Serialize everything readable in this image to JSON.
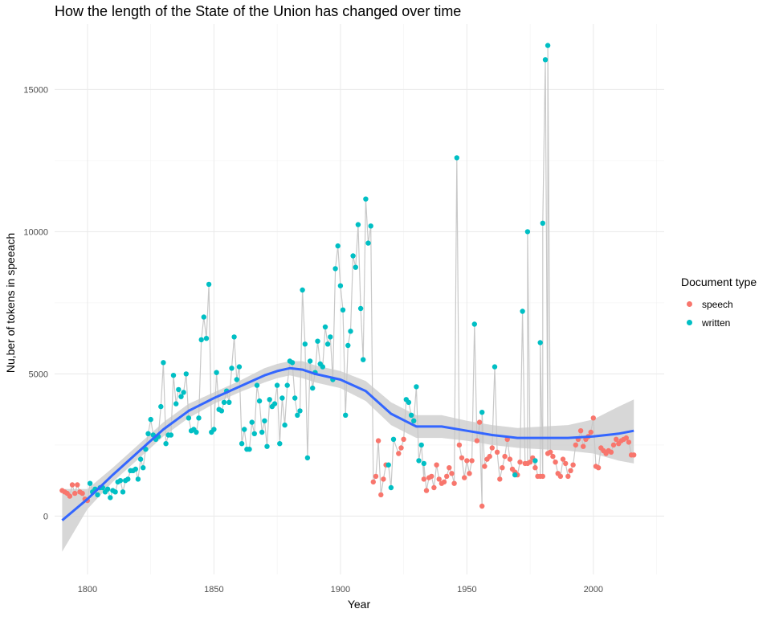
{
  "chart_data": {
    "type": "scatter",
    "title": "How the length of the State of the Union has changed over time",
    "xlabel": "Year",
    "ylabel": "Nu,ber of tokens in speeach",
    "xlim": [
      1787,
      2028
    ],
    "ylim": [
      -2050,
      17300
    ],
    "x_ticks": [
      1800,
      1850,
      1900,
      1950,
      2000
    ],
    "y_ticks": [
      0,
      5000,
      10000,
      15000
    ],
    "x_tick_labels": [
      "1800",
      "1850",
      "1900",
      "1950",
      "2000"
    ],
    "y_tick_labels": [
      "0",
      "5000",
      "10000",
      "15000"
    ],
    "grid": true,
    "legend_position": "right",
    "legend": {
      "title": "Document type",
      "entries": [
        {
          "label": "speech",
          "color": "#F8766D"
        },
        {
          "label": "written",
          "color": "#00BFC4"
        }
      ]
    },
    "colors": {
      "speech": "#F8766D",
      "written": "#00BFC4",
      "smooth": "#3366FF",
      "ribbon": "#d0d0d0",
      "line": "#c8c8c8"
    },
    "series": [
      {
        "name": "speech",
        "points": [
          [
            1790,
            900
          ],
          [
            1791,
            850
          ],
          [
            1792,
            800
          ],
          [
            1793,
            700
          ],
          [
            1794,
            1100
          ],
          [
            1795,
            800
          ],
          [
            1796,
            1100
          ],
          [
            1797,
            850
          ],
          [
            1798,
            800
          ],
          [
            1799,
            600
          ],
          [
            1800,
            550
          ],
          [
            1913,
            1200
          ],
          [
            1914,
            1400
          ],
          [
            1915,
            2650
          ],
          [
            1916,
            750
          ],
          [
            1917,
            1300
          ],
          [
            1918,
            1800
          ],
          [
            1923,
            2200
          ],
          [
            1924,
            2400
          ],
          [
            1925,
            2700
          ],
          [
            1933,
            1300
          ],
          [
            1934,
            900
          ],
          [
            1935,
            1350
          ],
          [
            1936,
            1400
          ],
          [
            1937,
            1000
          ],
          [
            1938,
            1800
          ],
          [
            1939,
            1300
          ],
          [
            1940,
            1150
          ],
          [
            1941,
            1200
          ],
          [
            1942,
            1400
          ],
          [
            1943,
            1700
          ],
          [
            1944,
            1500
          ],
          [
            1945,
            1150
          ],
          [
            1947,
            2500
          ],
          [
            1948,
            2050
          ],
          [
            1949,
            1350
          ],
          [
            1950,
            1950
          ],
          [
            1951,
            1500
          ],
          [
            1952,
            1950
          ],
          [
            1954,
            2650
          ],
          [
            1955,
            3300
          ],
          [
            1956,
            350
          ],
          [
            1957,
            1750
          ],
          [
            1958,
            2000
          ],
          [
            1959,
            2100
          ],
          [
            1960,
            2400
          ],
          [
            1962,
            2250
          ],
          [
            1963,
            1300
          ],
          [
            1964,
            1700
          ],
          [
            1965,
            2100
          ],
          [
            1966,
            2700
          ],
          [
            1967,
            2000
          ],
          [
            1968,
            1650
          ],
          [
            1969,
            1550
          ],
          [
            1970,
            1450
          ],
          [
            1971,
            1900
          ],
          [
            1973,
            1850
          ],
          [
            1974,
            1850
          ],
          [
            1975,
            1900
          ],
          [
            1976,
            2050
          ],
          [
            1977,
            1700
          ],
          [
            1978,
            1400
          ],
          [
            1979,
            1400
          ],
          [
            1980,
            1400
          ],
          [
            1982,
            2200
          ],
          [
            1983,
            2250
          ],
          [
            1984,
            2100
          ],
          [
            1985,
            1900
          ],
          [
            1986,
            1500
          ],
          [
            1987,
            1400
          ],
          [
            1988,
            2000
          ],
          [
            1989,
            1850
          ],
          [
            1990,
            1400
          ],
          [
            1991,
            1600
          ],
          [
            1992,
            1800
          ],
          [
            1993,
            2500
          ],
          [
            1994,
            2700
          ],
          [
            1995,
            3000
          ],
          [
            1996,
            2450
          ],
          [
            1997,
            2700
          ],
          [
            1998,
            2800
          ],
          [
            1999,
            2950
          ],
          [
            2000,
            3450
          ],
          [
            2001,
            1750
          ],
          [
            2002,
            1700
          ],
          [
            2003,
            2400
          ],
          [
            2004,
            2300
          ],
          [
            2005,
            2200
          ],
          [
            2006,
            2300
          ],
          [
            2007,
            2250
          ],
          [
            2008,
            2500
          ],
          [
            2009,
            2700
          ],
          [
            2010,
            2550
          ],
          [
            2011,
            2650
          ],
          [
            2012,
            2700
          ],
          [
            2013,
            2750
          ],
          [
            2014,
            2600
          ],
          [
            2015,
            2150
          ],
          [
            2016,
            2150
          ]
        ]
      },
      {
        "name": "written",
        "points": [
          [
            1801,
            1150
          ],
          [
            1802,
            850
          ],
          [
            1803,
            950
          ],
          [
            1804,
            750
          ],
          [
            1805,
            1000
          ],
          [
            1806,
            1000
          ],
          [
            1807,
            850
          ],
          [
            1808,
            950
          ],
          [
            1809,
            650
          ],
          [
            1810,
            900
          ],
          [
            1811,
            850
          ],
          [
            1812,
            1200
          ],
          [
            1813,
            1250
          ],
          [
            1814,
            850
          ],
          [
            1815,
            1250
          ],
          [
            1816,
            1300
          ],
          [
            1817,
            1600
          ],
          [
            1818,
            1600
          ],
          [
            1819,
            1650
          ],
          [
            1820,
            1300
          ],
          [
            1821,
            2000
          ],
          [
            1822,
            1700
          ],
          [
            1823,
            2350
          ],
          [
            1824,
            2900
          ],
          [
            1825,
            3400
          ],
          [
            1826,
            2850
          ],
          [
            1827,
            2700
          ],
          [
            1828,
            2800
          ],
          [
            1829,
            3850
          ],
          [
            1830,
            5400
          ],
          [
            1831,
            2550
          ],
          [
            1832,
            2850
          ],
          [
            1833,
            2850
          ],
          [
            1834,
            4950
          ],
          [
            1835,
            3950
          ],
          [
            1836,
            4450
          ],
          [
            1837,
            4200
          ],
          [
            1838,
            4350
          ],
          [
            1839,
            5000
          ],
          [
            1840,
            3450
          ],
          [
            1841,
            3000
          ],
          [
            1842,
            3050
          ],
          [
            1843,
            2950
          ],
          [
            1844,
            3450
          ],
          [
            1845,
            6200
          ],
          [
            1846,
            7000
          ],
          [
            1847,
            6250
          ],
          [
            1848,
            8150
          ],
          [
            1849,
            2950
          ],
          [
            1850,
            3050
          ],
          [
            1851,
            5050
          ],
          [
            1852,
            3750
          ],
          [
            1853,
            3700
          ],
          [
            1854,
            4000
          ],
          [
            1855,
            4400
          ],
          [
            1856,
            4000
          ],
          [
            1857,
            5200
          ],
          [
            1858,
            6300
          ],
          [
            1859,
            4800
          ],
          [
            1860,
            5250
          ],
          [
            1861,
            2550
          ],
          [
            1862,
            3050
          ],
          [
            1863,
            2350
          ],
          [
            1864,
            2350
          ],
          [
            1865,
            3300
          ],
          [
            1866,
            2900
          ],
          [
            1867,
            4600
          ],
          [
            1868,
            4050
          ],
          [
            1869,
            2950
          ],
          [
            1870,
            3350
          ],
          [
            1871,
            2450
          ],
          [
            1872,
            4100
          ],
          [
            1873,
            3850
          ],
          [
            1874,
            3950
          ],
          [
            1875,
            4600
          ],
          [
            1876,
            2550
          ],
          [
            1877,
            4150
          ],
          [
            1878,
            3200
          ],
          [
            1879,
            4600
          ],
          [
            1880,
            5450
          ],
          [
            1881,
            5400
          ],
          [
            1882,
            4150
          ],
          [
            1883,
            3550
          ],
          [
            1884,
            3700
          ],
          [
            1885,
            7950
          ],
          [
            1886,
            6050
          ],
          [
            1887,
            2050
          ],
          [
            1888,
            5450
          ],
          [
            1889,
            4500
          ],
          [
            1890,
            5050
          ],
          [
            1891,
            6150
          ],
          [
            1892,
            5350
          ],
          [
            1893,
            5250
          ],
          [
            1894,
            6650
          ],
          [
            1895,
            6050
          ],
          [
            1896,
            6300
          ],
          [
            1897,
            4800
          ],
          [
            1898,
            8700
          ],
          [
            1899,
            9500
          ],
          [
            1900,
            8100
          ],
          [
            1901,
            7250
          ],
          [
            1902,
            3550
          ],
          [
            1903,
            6000
          ],
          [
            1904,
            6500
          ],
          [
            1905,
            9150
          ],
          [
            1906,
            8750
          ],
          [
            1907,
            10250
          ],
          [
            1908,
            7300
          ],
          [
            1909,
            5500
          ],
          [
            1910,
            11150
          ],
          [
            1911,
            9600
          ],
          [
            1912,
            10200
          ],
          [
            1919,
            1800
          ],
          [
            1920,
            1000
          ],
          [
            1921,
            2700
          ],
          [
            1926,
            4100
          ],
          [
            1927,
            4000
          ],
          [
            1928,
            3550
          ],
          [
            1929,
            3350
          ],
          [
            1930,
            4550
          ],
          [
            1931,
            1950
          ],
          [
            1932,
            2500
          ],
          [
            1933,
            1850
          ],
          [
            1946,
            12600
          ],
          [
            1953,
            6750
          ],
          [
            1956,
            3650
          ],
          [
            1961,
            5250
          ],
          [
            1969,
            1450
          ],
          [
            1972,
            7200
          ],
          [
            1974,
            10000
          ],
          [
            1977,
            1950
          ],
          [
            1979,
            6100
          ],
          [
            1980,
            10300
          ],
          [
            1981,
            16050
          ],
          [
            1982,
            16550
          ]
        ]
      }
    ],
    "smooth_fit": {
      "label": "loess",
      "x": [
        1790,
        1800,
        1810,
        1820,
        1830,
        1840,
        1850,
        1860,
        1870,
        1875,
        1880,
        1885,
        1890,
        1900,
        1910,
        1920,
        1930,
        1940,
        1950,
        1960,
        1970,
        1980,
        1990,
        2000,
        2010,
        2016
      ],
      "y": [
        -150,
        600,
        1450,
        2250,
        3050,
        3700,
        4150,
        4550,
        4950,
        5100,
        5200,
        5150,
        5000,
        4800,
        4400,
        3600,
        3150,
        3150,
        3000,
        2850,
        2750,
        2750,
        2750,
        2800,
        2900,
        3000
      ],
      "lower": [
        -1250,
        250,
        1200,
        2000,
        2800,
        3450,
        3950,
        4350,
        4700,
        4850,
        4950,
        4850,
        4700,
        4500,
        4050,
        3200,
        2750,
        2750,
        2650,
        2500,
        2400,
        2350,
        2300,
        2200,
        1950,
        1850
      ],
      "upper": [
        950,
        950,
        1700,
        2500,
        3300,
        3950,
        4350,
        4750,
        5200,
        5350,
        5450,
        5450,
        5300,
        5100,
        4750,
        4000,
        3550,
        3550,
        3350,
        3200,
        3100,
        3150,
        3200,
        3400,
        3850,
        4100
      ]
    }
  }
}
